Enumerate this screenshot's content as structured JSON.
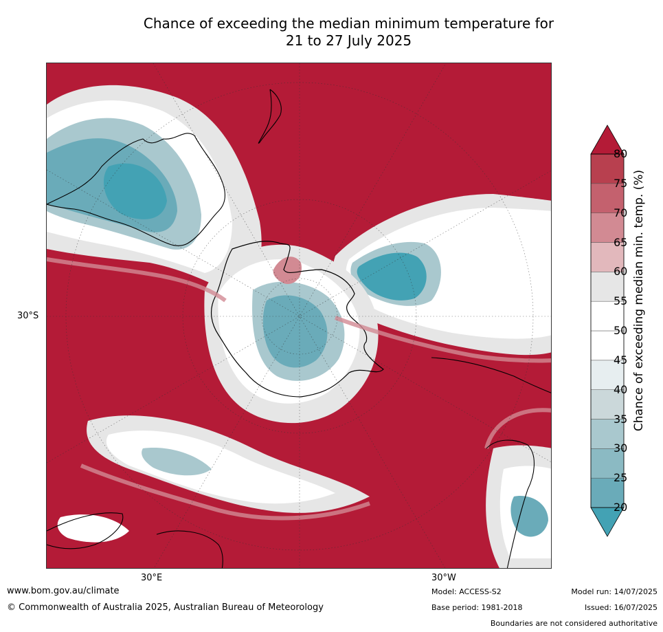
{
  "title": {
    "line1": "Chance of exceeding the median minimum temperature for",
    "line2": "21 to 27 July 2025"
  },
  "map": {
    "projection": "south polar stereographic",
    "labels": {
      "lat": "30°S",
      "lon_east": "30°E",
      "lon_west": "30°W"
    }
  },
  "colorbar": {
    "title": "Chance of exceeding median min. temp. (%)",
    "ticks": [
      "20",
      "25",
      "30",
      "35",
      "40",
      "45",
      "50",
      "55",
      "60",
      "65",
      "70",
      "75",
      "80"
    ],
    "colors": [
      "#43a2b4",
      "#6aabb9",
      "#8bbac3",
      "#a9c8ce",
      "#cbd8da",
      "#e7eef0",
      "#ffffff",
      "#ffffff",
      "#e6e6e6",
      "#e2b8bc",
      "#d28a93",
      "#c4616e",
      "#b8404f",
      "#b41b37"
    ]
  },
  "footer": {
    "website": "www.bom.gov.au/climate",
    "copyright": "© Commonwealth of Australia 2025, Australian Bureau of Meteorology",
    "model": "Model: ACCESS-S2",
    "base_period": "Base period: 1981-2018",
    "model_run": "Model run: 14/07/2025",
    "issued": "Issued: 16/07/2025",
    "disclaimer": "Boundaries are not considered authoritative"
  }
}
